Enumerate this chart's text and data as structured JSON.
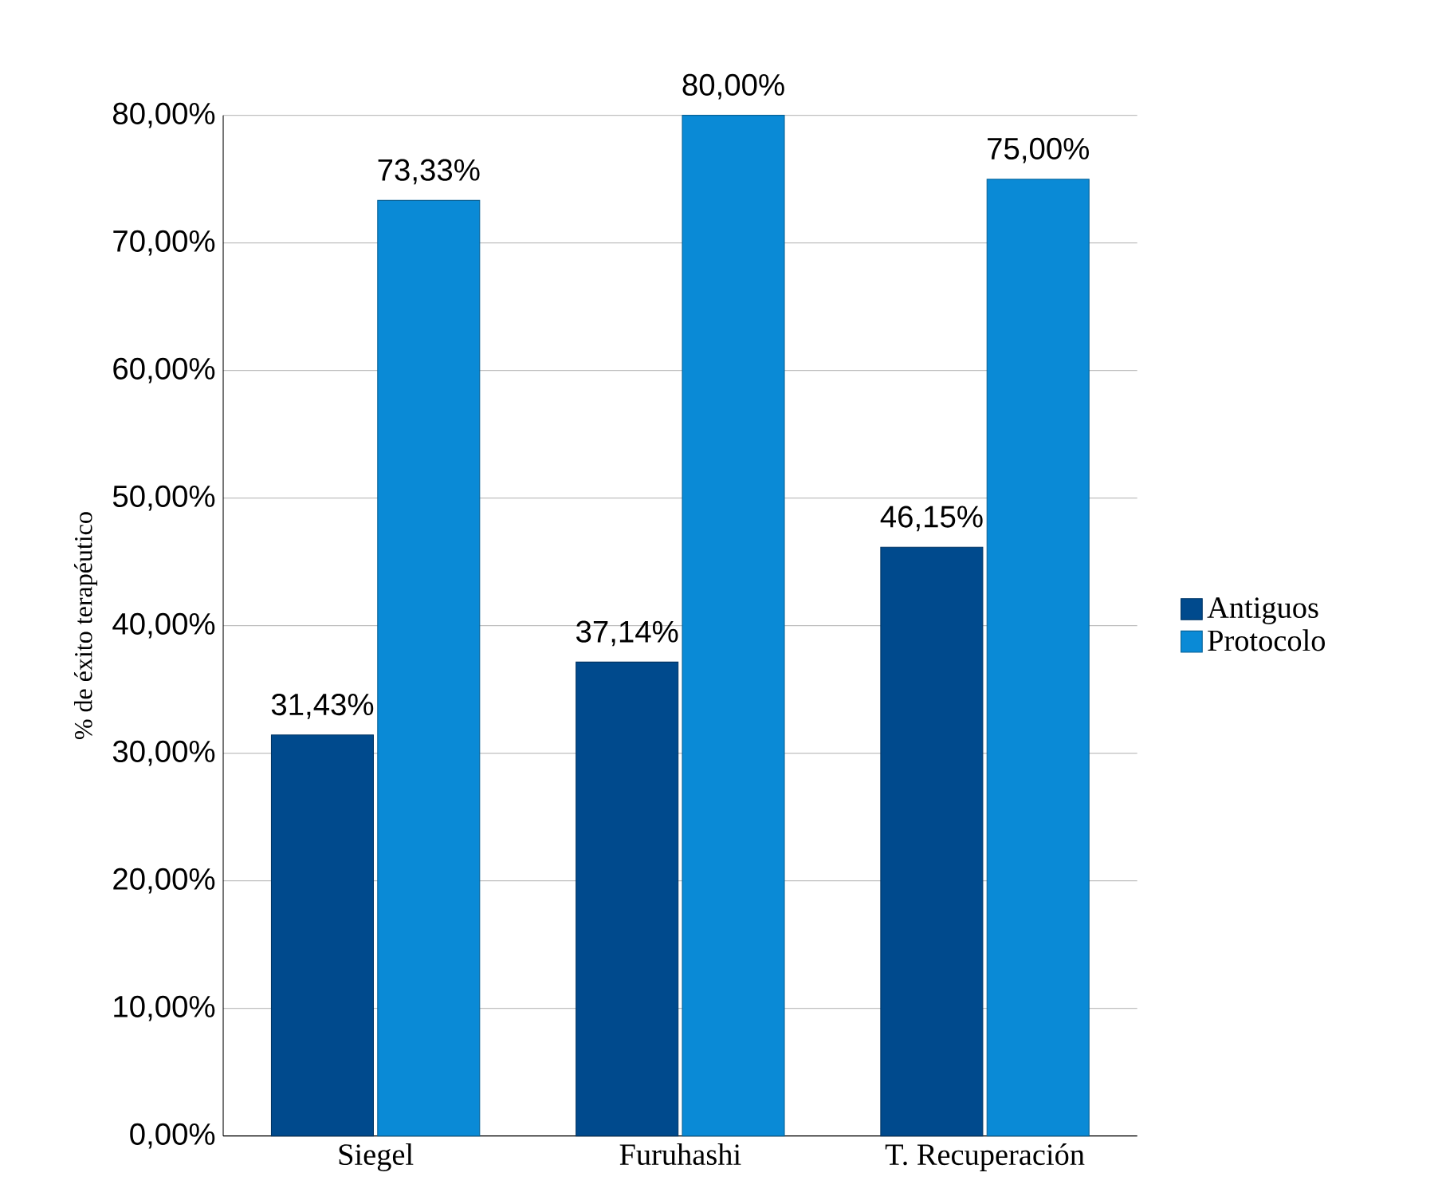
{
  "chart_data": {
    "type": "bar",
    "ylabel": "% de éxito terapéutico",
    "categories": [
      "Siegel",
      "Furuhashi",
      "T. Recuperación"
    ],
    "series": [
      {
        "name": "Antiguos",
        "color": "#004a8d",
        "values": [
          31.43,
          37.14,
          46.15
        ],
        "value_labels": [
          "31,43%",
          "37,14%",
          "46,15%"
        ]
      },
      {
        "name": "Protocolo",
        "color": "#0a8ad6",
        "values": [
          73.33,
          80,
          75
        ],
        "value_labels": [
          "73,33%",
          "80,00%",
          "75,00%"
        ]
      }
    ],
    "ylim": [
      0,
      80
    ],
    "yticks": [
      {
        "value": 0,
        "label": "0,00%"
      },
      {
        "value": 10,
        "label": "10,00%"
      },
      {
        "value": 20,
        "label": "20,00%"
      },
      {
        "value": 30,
        "label": "30,00%"
      },
      {
        "value": 40,
        "label": "40,00%"
      },
      {
        "value": 50,
        "label": "50,00%"
      },
      {
        "value": 60,
        "label": "60,00%"
      },
      {
        "value": 70,
        "label": "70,00%"
      },
      {
        "value": 80,
        "label": "80,00%"
      }
    ],
    "grid": "y",
    "legend": "right"
  }
}
